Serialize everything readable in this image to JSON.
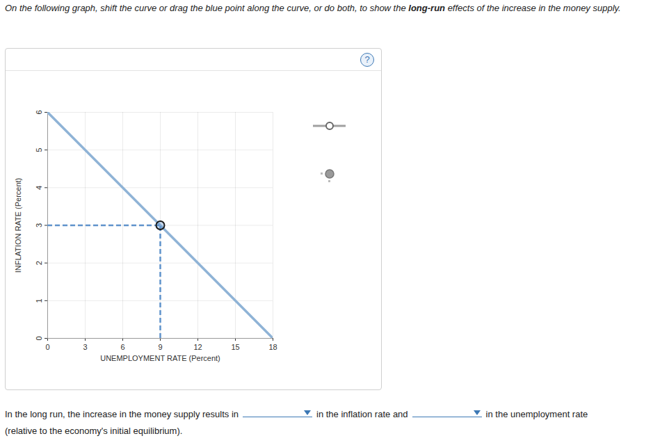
{
  "instruction": {
    "text_before": "On the following graph, shift the curve or drag the blue point along the curve, or do both, to show the ",
    "bold": "long-run",
    "text_after": " effects of the increase in the money supply."
  },
  "help": "?",
  "question": {
    "parts": [
      "In the long run, the increase in the money supply results in",
      "in the inflation rate and",
      "in the unemployment rate",
      "(relative to the economy's initial equilibrium)."
    ]
  },
  "chart_data": {
    "type": "line",
    "x_label": "UNEMPLOYMENT RATE (Percent)",
    "y_label": "INFLATION RATE (Percent)",
    "x": [
      0,
      9,
      18
    ],
    "series": [
      {
        "color": "#8fb3d6",
        "values": [
          6,
          3,
          0
        ]
      },
      {
        "type": "scatter",
        "marker": "circle",
        "line_style": "dashed",
        "color": "#5f93cb",
        "values": [
          null,
          3,
          null
        ]
      }
    ],
    "xlim": [
      0,
      18
    ],
    "xticks": [
      0,
      3,
      6,
      9,
      12,
      15,
      18
    ],
    "ylim": [
      0,
      6
    ],
    "yticks": [
      0,
      1,
      2,
      3,
      4,
      5,
      6
    ],
    "grid": true
  }
}
